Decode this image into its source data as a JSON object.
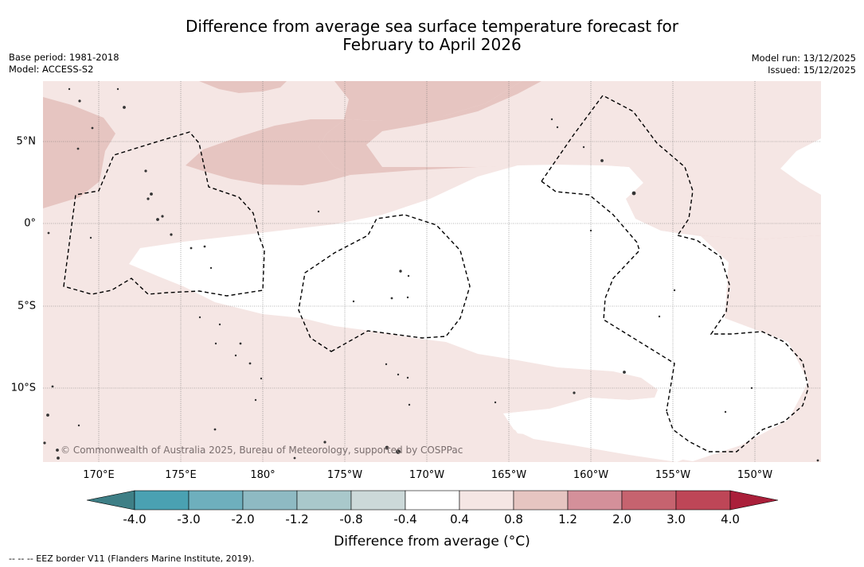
{
  "title_line1": "Difference from average sea surface temperature forecast for",
  "title_line2": "February to April 2026",
  "base_period": "Base period: 1981-2018",
  "model": "Model: ACCESS-S2",
  "model_run": "Model run: 13/12/2025",
  "issued": "Issued: 15/12/2025",
  "longitude_labels": [
    "170°E",
    "175°E",
    "180°",
    "175°W",
    "170°W",
    "165°W",
    "160°W",
    "155°W",
    "150°W"
  ],
  "latitude_labels": [
    "5°N",
    "0°",
    "5°S",
    "10°S"
  ],
  "copyright": "© Commonwealth of Australia 2025, Bureau of Meteorology, supported by COSPPac",
  "colorbar": {
    "ticks": [
      "-4.0",
      "-3.0",
      "-2.0",
      "-1.2",
      "-0.8",
      "-0.4",
      "0.4",
      "0.8",
      "1.2",
      "2.0",
      "3.0",
      "4.0"
    ],
    "colors": [
      "#3e7f86",
      "#4aa1b2",
      "#6eafbd",
      "#8ebac3",
      "#a9c8cb",
      "#ccd9d9",
      "#ffffff",
      "#f5e6e4",
      "#e6c5c1",
      "#d4909a",
      "#c6636f",
      "#be4657",
      "#aa1f3a"
    ],
    "title": "Difference from average (°C)"
  },
  "footnote": "--  --  -- EEZ border V11 (Flanders Marine Institute, 2019).",
  "map_colors": {
    "light_anomaly": "#f5e6e4",
    "medium_anomaly": "#e6c5c1",
    "neutral": "#ffffff",
    "land": "#333333"
  }
}
